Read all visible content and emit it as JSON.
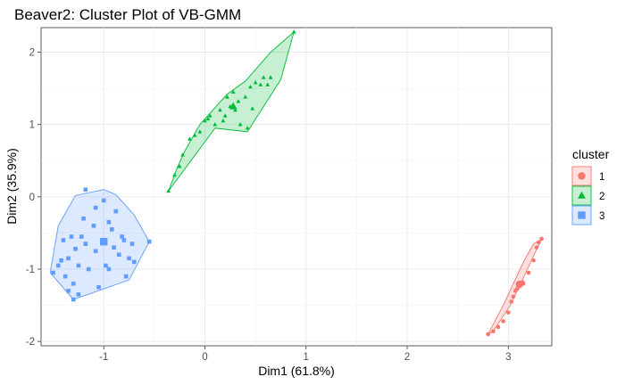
{
  "chart_data": {
    "type": "scatter",
    "title": "Beaver2: Cluster Plot of VB-GMM",
    "xlabel": "Dim1 (61.8%)",
    "ylabel": "Dim2 (35.9%)",
    "xlim": [
      -1.62,
      3.43
    ],
    "ylim": [
      -2.06,
      2.34
    ],
    "x_ticks": [
      -1,
      0,
      1,
      2,
      3
    ],
    "y_ticks": [
      -2,
      -1,
      0,
      1,
      2
    ],
    "x_tick_labels": [
      "-1",
      "0",
      "1",
      "2",
      "3"
    ],
    "y_tick_labels": [
      "-2",
      "-1",
      "0",
      "1",
      "2"
    ],
    "grid": true,
    "legend": {
      "title": "cluster",
      "placement": "right"
    },
    "series": [
      {
        "name": "1",
        "shape": "circle",
        "color": "#F8766D",
        "points": [
          [
            2.8,
            -1.9
          ],
          [
            2.85,
            -1.86
          ],
          [
            2.9,
            -1.8
          ],
          [
            2.95,
            -1.72
          ],
          [
            3.0,
            -1.6
          ],
          [
            3.03,
            -1.45
          ],
          [
            3.05,
            -1.38
          ],
          [
            3.07,
            -1.3
          ],
          [
            3.09,
            -1.27
          ],
          [
            3.1,
            -1.22
          ],
          [
            3.12,
            -1.2
          ],
          [
            3.14,
            -1.18
          ],
          [
            3.15,
            -1.2
          ],
          [
            3.2,
            -1.05
          ],
          [
            3.25,
            -0.88
          ],
          [
            3.28,
            -0.7
          ],
          [
            3.3,
            -0.63
          ],
          [
            3.33,
            -0.58
          ]
        ],
        "centroid": [
          3.11,
          -1.21
        ],
        "hull": [
          [
            2.8,
            -1.9
          ],
          [
            2.85,
            -1.86
          ],
          [
            3.02,
            -1.5
          ],
          [
            3.33,
            -0.58
          ],
          [
            3.25,
            -0.65
          ],
          [
            3.15,
            -0.9
          ],
          [
            2.95,
            -1.5
          ]
        ]
      },
      {
        "name": "2",
        "shape": "triangle",
        "color": "#00BA38",
        "points": [
          [
            -0.36,
            0.08
          ],
          [
            -0.3,
            0.3
          ],
          [
            -0.25,
            0.42
          ],
          [
            -0.22,
            0.58
          ],
          [
            -0.15,
            0.8
          ],
          [
            -0.1,
            0.85
          ],
          [
            -0.05,
            0.9
          ],
          [
            0.0,
            1.05
          ],
          [
            0.03,
            1.08
          ],
          [
            0.05,
            1.12
          ],
          [
            0.1,
            1.0
          ],
          [
            0.15,
            1.2
          ],
          [
            0.18,
            1.05
          ],
          [
            0.2,
            1.12
          ],
          [
            0.22,
            1.38
          ],
          [
            0.25,
            1.25
          ],
          [
            0.28,
            1.45
          ],
          [
            0.3,
            1.2
          ],
          [
            0.33,
            1.32
          ],
          [
            0.35,
            1.0
          ],
          [
            0.4,
            1.38
          ],
          [
            0.42,
            0.95
          ],
          [
            0.45,
            1.52
          ],
          [
            0.47,
            1.22
          ],
          [
            0.5,
            1.58
          ],
          [
            0.55,
            1.55
          ],
          [
            0.58,
            1.65
          ],
          [
            0.62,
            1.55
          ],
          [
            0.65,
            1.65
          ],
          [
            0.88,
            2.28
          ]
        ],
        "centroid": [
          0.28,
          1.25
        ],
        "hull": [
          [
            -0.36,
            0.08
          ],
          [
            0.1,
            0.95
          ],
          [
            0.42,
            0.9
          ],
          [
            0.75,
            1.62
          ],
          [
            0.88,
            2.28
          ],
          [
            0.65,
            2.0
          ],
          [
            0.4,
            1.6
          ],
          [
            0.22,
            1.42
          ],
          [
            -0.05,
            1.0
          ],
          [
            -0.2,
            0.63
          ],
          [
            -0.28,
            0.38
          ]
        ]
      },
      {
        "name": "3",
        "shape": "square",
        "color": "#619CFF",
        "points": [
          [
            -1.5,
            -1.05
          ],
          [
            -1.45,
            -0.95
          ],
          [
            -1.42,
            -0.88
          ],
          [
            -1.38,
            -1.1
          ],
          [
            -1.35,
            -0.85
          ],
          [
            -1.32,
            -0.55
          ],
          [
            -1.3,
            -1.2
          ],
          [
            -1.28,
            -0.72
          ],
          [
            -1.25,
            -0.95
          ],
          [
            -1.22,
            -0.55
          ],
          [
            -1.2,
            -0.3
          ],
          [
            -1.18,
            -0.65
          ],
          [
            -1.15,
            -1.0
          ],
          [
            -1.1,
            -0.4
          ],
          [
            -1.08,
            -0.75
          ],
          [
            -1.05,
            -1.25
          ],
          [
            -1.0,
            -0.6
          ],
          [
            -0.98,
            -0.95
          ],
          [
            -0.95,
            -1.0
          ],
          [
            -0.92,
            -0.45
          ],
          [
            -0.9,
            -0.7
          ],
          [
            -0.88,
            -0.2
          ],
          [
            -0.85,
            -0.8
          ],
          [
            -0.82,
            -0.55
          ],
          [
            -0.8,
            -0.6
          ],
          [
            -0.78,
            -1.1
          ],
          [
            -0.75,
            -0.85
          ],
          [
            -0.72,
            -0.65
          ],
          [
            -0.7,
            -0.9
          ],
          [
            -0.55,
            -0.62
          ],
          [
            -1.3,
            -1.42
          ],
          [
            -1.35,
            -1.3
          ],
          [
            -1.25,
            -1.35
          ],
          [
            -1.0,
            -0.05
          ],
          [
            -1.18,
            0.1
          ],
          [
            -1.08,
            -0.15
          ],
          [
            -0.95,
            -0.35
          ],
          [
            -1.4,
            -0.6
          ]
        ],
        "centroid": [
          -1.0,
          -0.62
        ],
        "hull": [
          [
            -1.53,
            -1.05
          ],
          [
            -1.3,
            -1.42
          ],
          [
            -0.75,
            -1.15
          ],
          [
            -0.55,
            -0.62
          ],
          [
            -0.7,
            -0.25
          ],
          [
            -0.88,
            0.03
          ],
          [
            -1.0,
            0.1
          ],
          [
            -1.28,
            0.02
          ],
          [
            -1.45,
            -0.4
          ]
        ]
      }
    ]
  }
}
